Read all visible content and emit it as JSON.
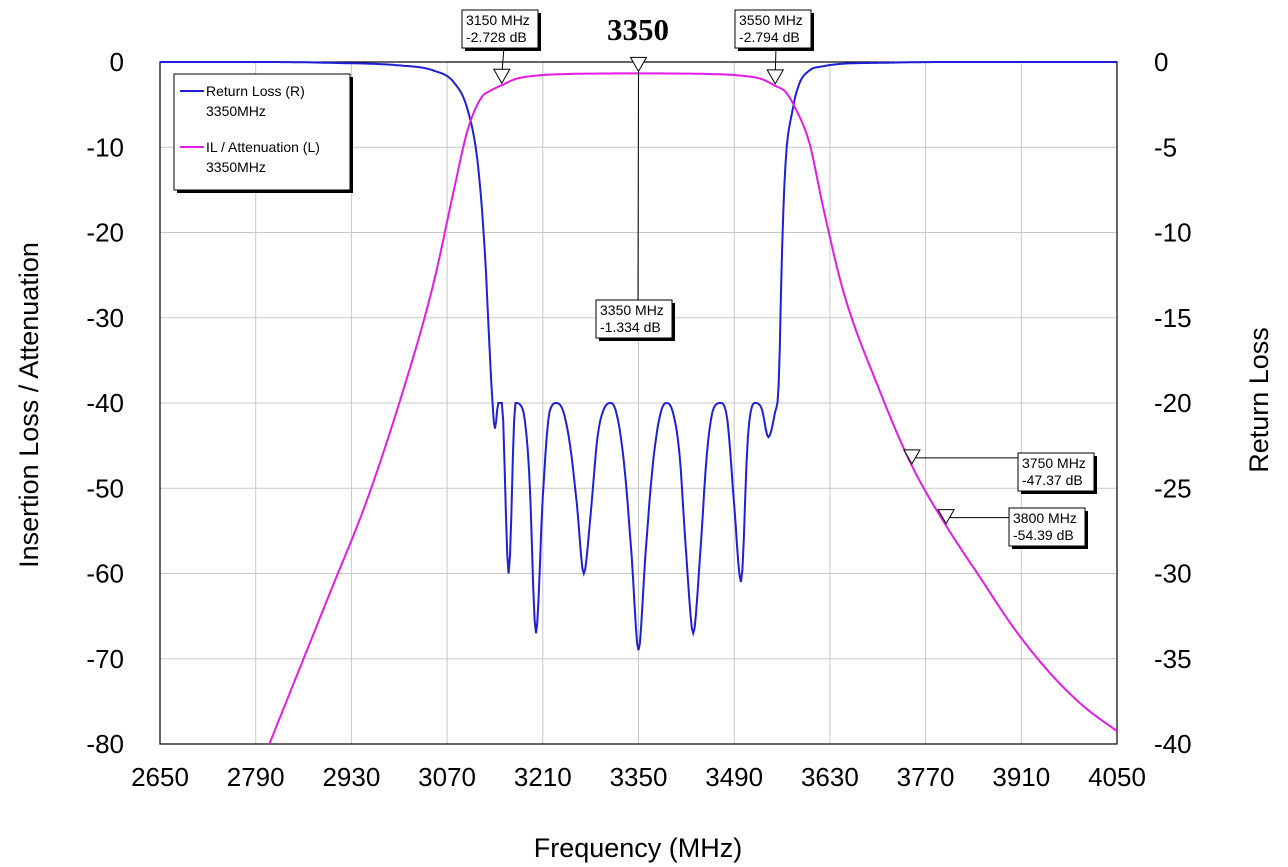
{
  "chart_data": {
    "type": "line",
    "title": "3350",
    "xlabel": "Frequency (MHz)",
    "ylabel_left": "Insertion Loss / Attenuation",
    "ylabel_right": "Return Loss",
    "xlim": [
      2650,
      4050
    ],
    "ylim_left": [
      -80,
      0
    ],
    "ylim_right": [
      -40,
      0
    ],
    "x_ticks": [
      "2650",
      "2790",
      "2930",
      "3070",
      "3210",
      "3350",
      "3490",
      "3630",
      "3770",
      "3910",
      "4050"
    ],
    "y_ticks_left": [
      "0",
      "-10",
      "-20",
      "-30",
      "-40",
      "-50",
      "-60",
      "-70",
      "-80"
    ],
    "y_ticks_right": [
      "0",
      "-5",
      "-10",
      "-15",
      "-20",
      "-25",
      "-30",
      "-35",
      "-40"
    ],
    "grid": true,
    "legend_position": "top-left",
    "series": [
      {
        "name": "Return Loss (R)",
        "sub": "3350MHz",
        "axis": "right",
        "color": "#1f1fd6",
        "x": [
          2650,
          2800,
          2900,
          3000,
          3050,
          3080,
          3100,
          3115,
          3125,
          3135,
          3140,
          3145,
          3150,
          3160,
          3170,
          3180,
          3190,
          3200,
          3210,
          3220,
          3230,
          3240,
          3250,
          3260,
          3270,
          3280,
          3290,
          3300,
          3310,
          3320,
          3330,
          3340,
          3350,
          3360,
          3370,
          3380,
          3390,
          3400,
          3410,
          3420,
          3430,
          3440,
          3450,
          3460,
          3470,
          3480,
          3490,
          3500,
          3510,
          3520,
          3530,
          3540,
          3550,
          3555,
          3560,
          3565,
          3575,
          3585,
          3600,
          3620,
          3650,
          3700,
          3800,
          3900,
          4050
        ],
        "values": [
          0,
          0,
          -0.05,
          -0.2,
          -0.5,
          -1.2,
          -2.8,
          -6,
          -11,
          -19,
          -21.5,
          -20,
          -20,
          -30,
          -20,
          -20.3,
          -24,
          -33.5,
          -25.5,
          -20.5,
          -20,
          -20.5,
          -22.5,
          -26,
          -30,
          -26.5,
          -22,
          -20.3,
          -20,
          -21,
          -24,
          -29,
          -34.5,
          -29,
          -24,
          -21,
          -20,
          -20.5,
          -23,
          -29,
          -33.5,
          -29,
          -23,
          -20.3,
          -20,
          -21,
          -26,
          -30.5,
          -22,
          -20,
          -20.3,
          -22,
          -20.5,
          -19,
          -11,
          -6,
          -2.9,
          -1.3,
          -0.5,
          -0.25,
          -0.1,
          -0.05,
          0,
          0,
          0
        ]
      },
      {
        "name": "IL / Attenuation (L)",
        "sub": "3350MHz",
        "axis": "left",
        "color": "#e61ae6",
        "x": [
          2810,
          2850,
          2900,
          2950,
          3000,
          3050,
          3080,
          3100,
          3120,
          3135,
          3150,
          3170,
          3200,
          3250,
          3300,
          3350,
          3400,
          3450,
          3500,
          3530,
          3550,
          3565,
          3580,
          3600,
          3620,
          3650,
          3700,
          3750,
          3800,
          3850,
          3900,
          3950,
          4000,
          4050
        ],
        "values": [
          -80,
          -72,
          -62,
          -52,
          -40,
          -26,
          -15,
          -8,
          -4.2,
          -3.3,
          -2.728,
          -2.0,
          -1.6,
          -1.4,
          -1.35,
          -1.334,
          -1.35,
          -1.4,
          -1.6,
          -2.0,
          -2.794,
          -3.5,
          -5.5,
          -9.5,
          -17,
          -27,
          -38,
          -47.37,
          -54.39,
          -60.5,
          -66.5,
          -71.5,
          -75.5,
          -78.5
        ]
      }
    ],
    "markers": [
      {
        "x": 3150,
        "y": -2.728,
        "line1": "3150 MHz",
        "line2": "-2.728 dB"
      },
      {
        "x": 3350,
        "y": -1.334,
        "line1": "3350 MHz",
        "line2": "-1.334 dB"
      },
      {
        "x": 3550,
        "y": -2.794,
        "line1": "3550 MHz",
        "line2": "-2.794 dB"
      },
      {
        "x": 3750,
        "y": -47.37,
        "line1": "3750 MHz",
        "line2": "-47.37 dB"
      },
      {
        "x": 3800,
        "y": -54.39,
        "line1": "3800 MHz",
        "line2": "-54.39 dB"
      }
    ]
  }
}
